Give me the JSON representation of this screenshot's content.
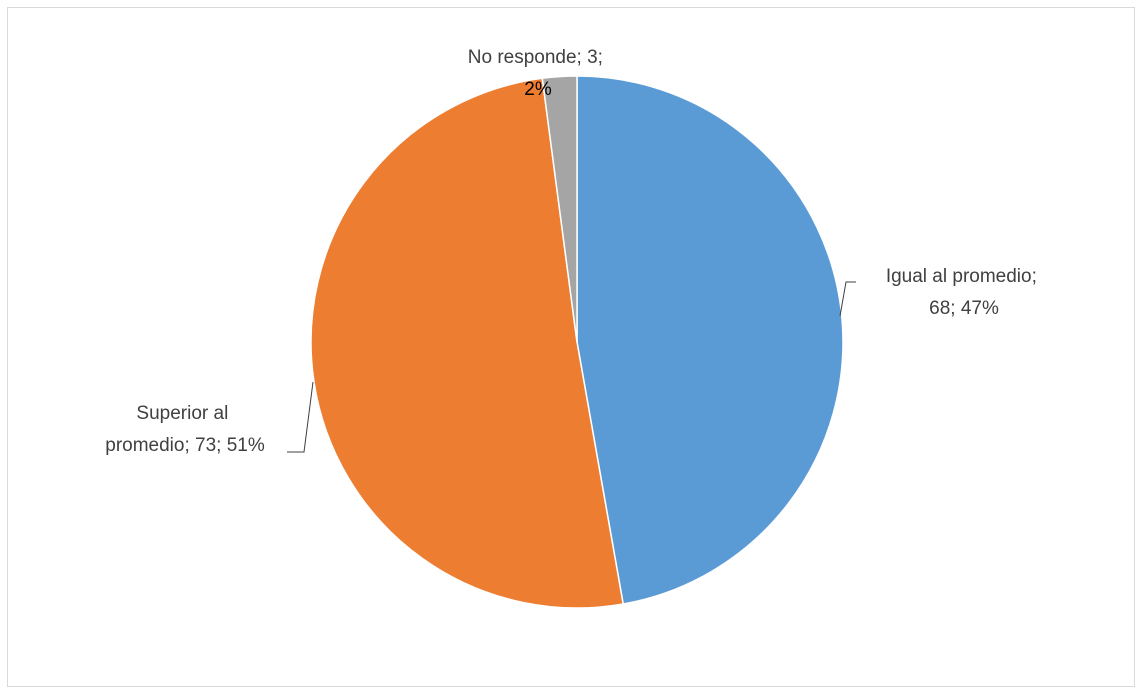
{
  "chart_data": {
    "type": "pie",
    "title": "",
    "slices": [
      {
        "label": "Igual al promedio",
        "value": 68,
        "percent": 47,
        "color": "#5b9bd5",
        "text_lines": [
          "Igual al promedio;",
          "68; 47%"
        ]
      },
      {
        "label": "Superior al promedio",
        "value": 73,
        "percent": 51,
        "color": "#ed7d31",
        "text_lines": [
          "Superior al",
          "promedio; 73; 51%"
        ]
      },
      {
        "label": "No responde",
        "value": 3,
        "percent": 2,
        "color": "#a5a5a5",
        "text_lines": [
          "No responde; 3;",
          "2%"
        ]
      }
    ],
    "start_angle_deg": 0,
    "direction": "clockwise",
    "legend": "none",
    "data_labels": "outside with leader lines"
  }
}
